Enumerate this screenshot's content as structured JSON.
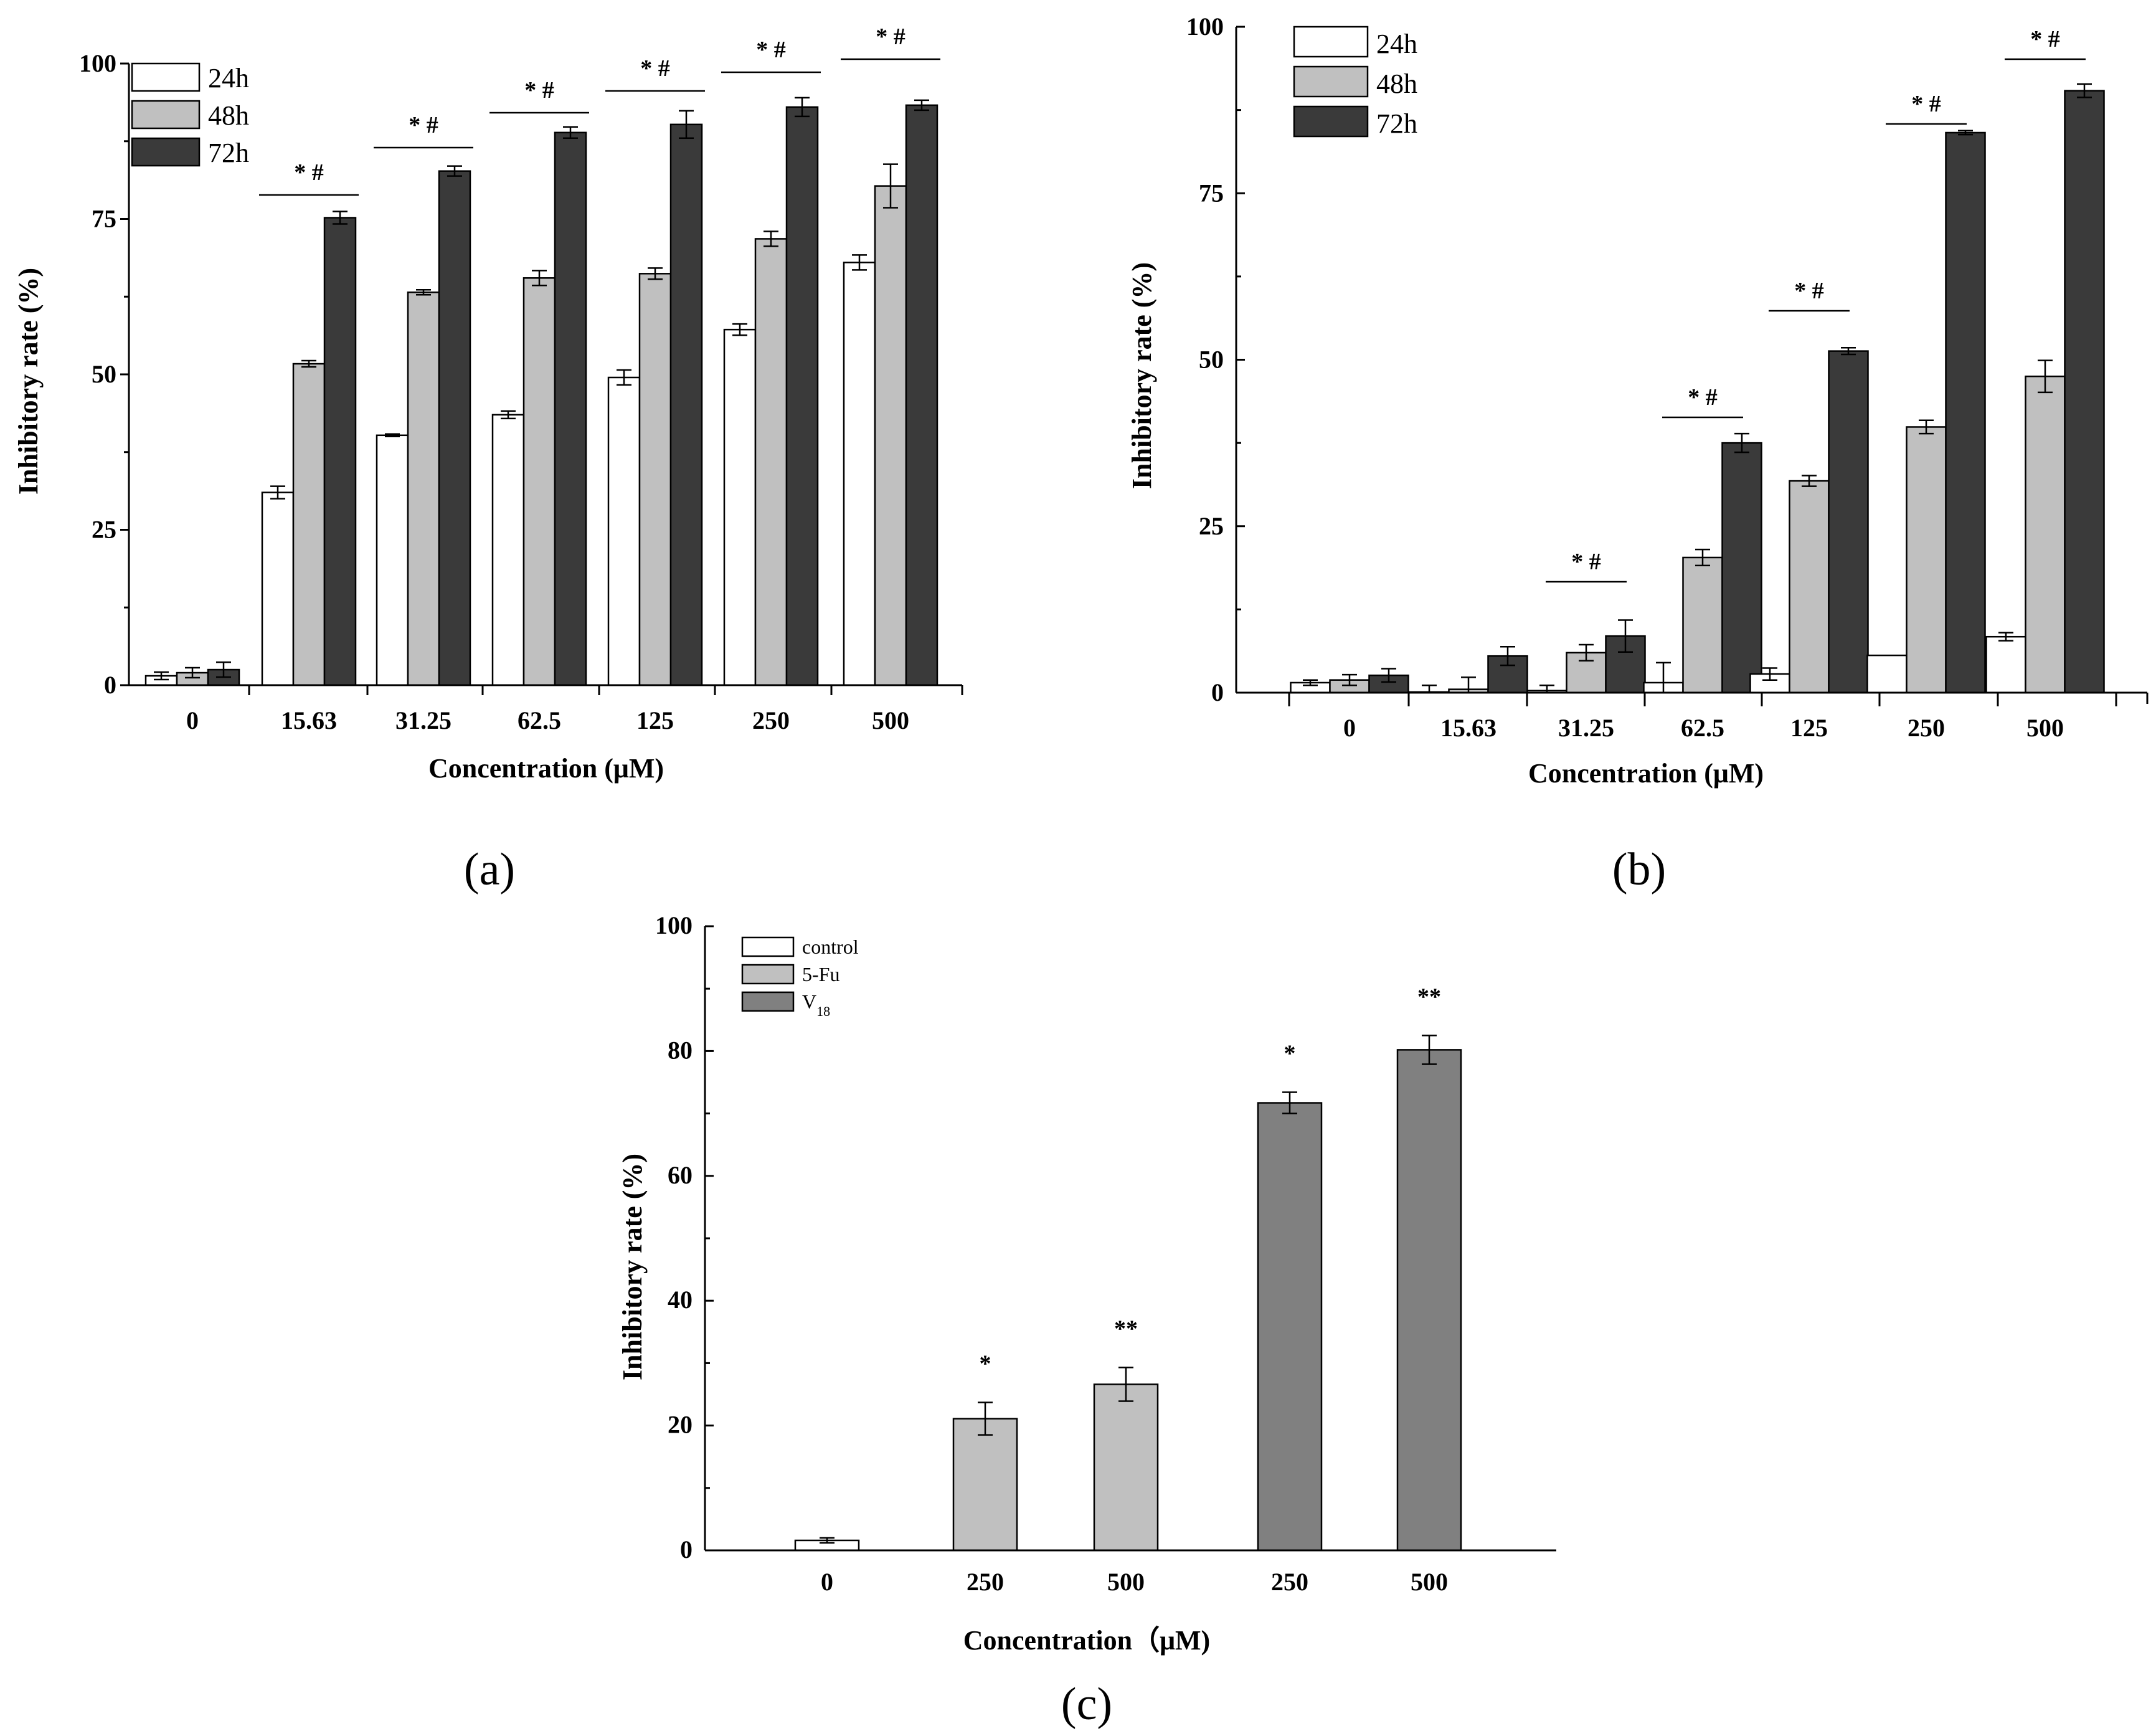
{
  "chart_data": [
    {
      "panel": "(a)",
      "type": "bar",
      "xlabel": "Concentration (μM)",
      "ylabel": "Inhibitory rate (%)",
      "ylim": [
        0,
        100
      ],
      "yticks": [
        "0",
        "25",
        "50",
        "75",
        "100"
      ],
      "categories": [
        "0",
        "15.63",
        "31.25",
        "62.5",
        "125",
        "250",
        "500"
      ],
      "series": [
        {
          "name": "24h",
          "color": "#ffffff",
          "values": [
            1.5,
            31,
            40.2,
            43.5,
            49.5,
            57.2,
            68
          ],
          "errors": [
            0.6,
            1.0,
            0.2,
            0.6,
            1.2,
            0.9,
            1.2
          ]
        },
        {
          "name": "48h",
          "color": "#c0c0c0",
          "values": [
            2.0,
            51.7,
            63.2,
            65.5,
            66.2,
            71.8,
            80.3
          ],
          "errors": [
            0.8,
            0.5,
            0.4,
            1.2,
            0.9,
            1.2,
            3.5
          ]
        },
        {
          "name": "72h",
          "color": "#3a3a3a",
          "values": [
            2.5,
            75.2,
            82.7,
            88.9,
            90.2,
            93,
            93.3
          ],
          "errors": [
            1.2,
            1.0,
            0.8,
            0.9,
            2.2,
            1.5,
            0.8
          ]
        }
      ],
      "significance": [
        "",
        "* #",
        "* #",
        "* #",
        "*  #",
        "* #",
        "* #"
      ]
    },
    {
      "panel": "(b)",
      "type": "bar",
      "xlabel": "Concentration (μM)",
      "ylabel": "Inhibitory rate (%)",
      "ylim": [
        0,
        100
      ],
      "yticks": [
        "0",
        "25",
        "50",
        "75",
        "100"
      ],
      "categories": [
        "0",
        "15.63",
        "31.25",
        "62.5",
        "125",
        "250",
        "500"
      ],
      "series": [
        {
          "name": "24h",
          "color": "#ffffff",
          "values": [
            1.5,
            0.1,
            0.3,
            1.5,
            2.8,
            5.6,
            8.4
          ],
          "errors": [
            0.4,
            1.0,
            0.8,
            3.0,
            0.9,
            0.0,
            0.6
          ]
        },
        {
          "name": "48h",
          "color": "#c0c0c0",
          "values": [
            1.9,
            0.5,
            6.0,
            20.3,
            31.8,
            39.9,
            47.5
          ],
          "errors": [
            0.8,
            1.8,
            1.2,
            1.2,
            0.8,
            1.0,
            2.4
          ]
        },
        {
          "name": "72h",
          "color": "#3a3a3a",
          "values": [
            2.6,
            5.5,
            8.5,
            37.5,
            51.3,
            84.1,
            90.4
          ],
          "errors": [
            1.0,
            1.4,
            2.4,
            1.4,
            0.5,
            0.3,
            1.0
          ]
        }
      ],
      "significance": [
        "",
        "",
        "* #",
        "* #",
        "* #",
        "* #",
        "* #"
      ]
    },
    {
      "panel": "(c)",
      "type": "bar",
      "xlabel": "Concentration（μM)",
      "ylabel": "Inhibitory rate (%)",
      "ylim": [
        0,
        100
      ],
      "yticks": [
        "0",
        "20",
        "40",
        "60",
        "80",
        "100"
      ],
      "categories": [
        "0",
        "250",
        "500",
        "250",
        "500"
      ],
      "legend": [
        {
          "name": "control",
          "color": "#ffffff"
        },
        {
          "name": "5-Fu",
          "color": "#c0c0c0"
        },
        {
          "name": "V",
          "sub": "18",
          "color": "#808080"
        }
      ],
      "bars": [
        {
          "group": "control",
          "value": 1.6,
          "error": 0.4,
          "color": "#ffffff",
          "sig": ""
        },
        {
          "group": "5-Fu",
          "value": 21.1,
          "error": 2.6,
          "color": "#c0c0c0",
          "sig": "*"
        },
        {
          "group": "5-Fu",
          "value": 26.6,
          "error": 2.7,
          "color": "#c0c0c0",
          "sig": "**"
        },
        {
          "group": "V18",
          "value": 71.7,
          "error": 1.7,
          "color": "#808080",
          "sig": "*"
        },
        {
          "group": "V18",
          "value": 80.2,
          "error": 2.3,
          "color": "#808080",
          "sig": "**"
        }
      ]
    }
  ]
}
